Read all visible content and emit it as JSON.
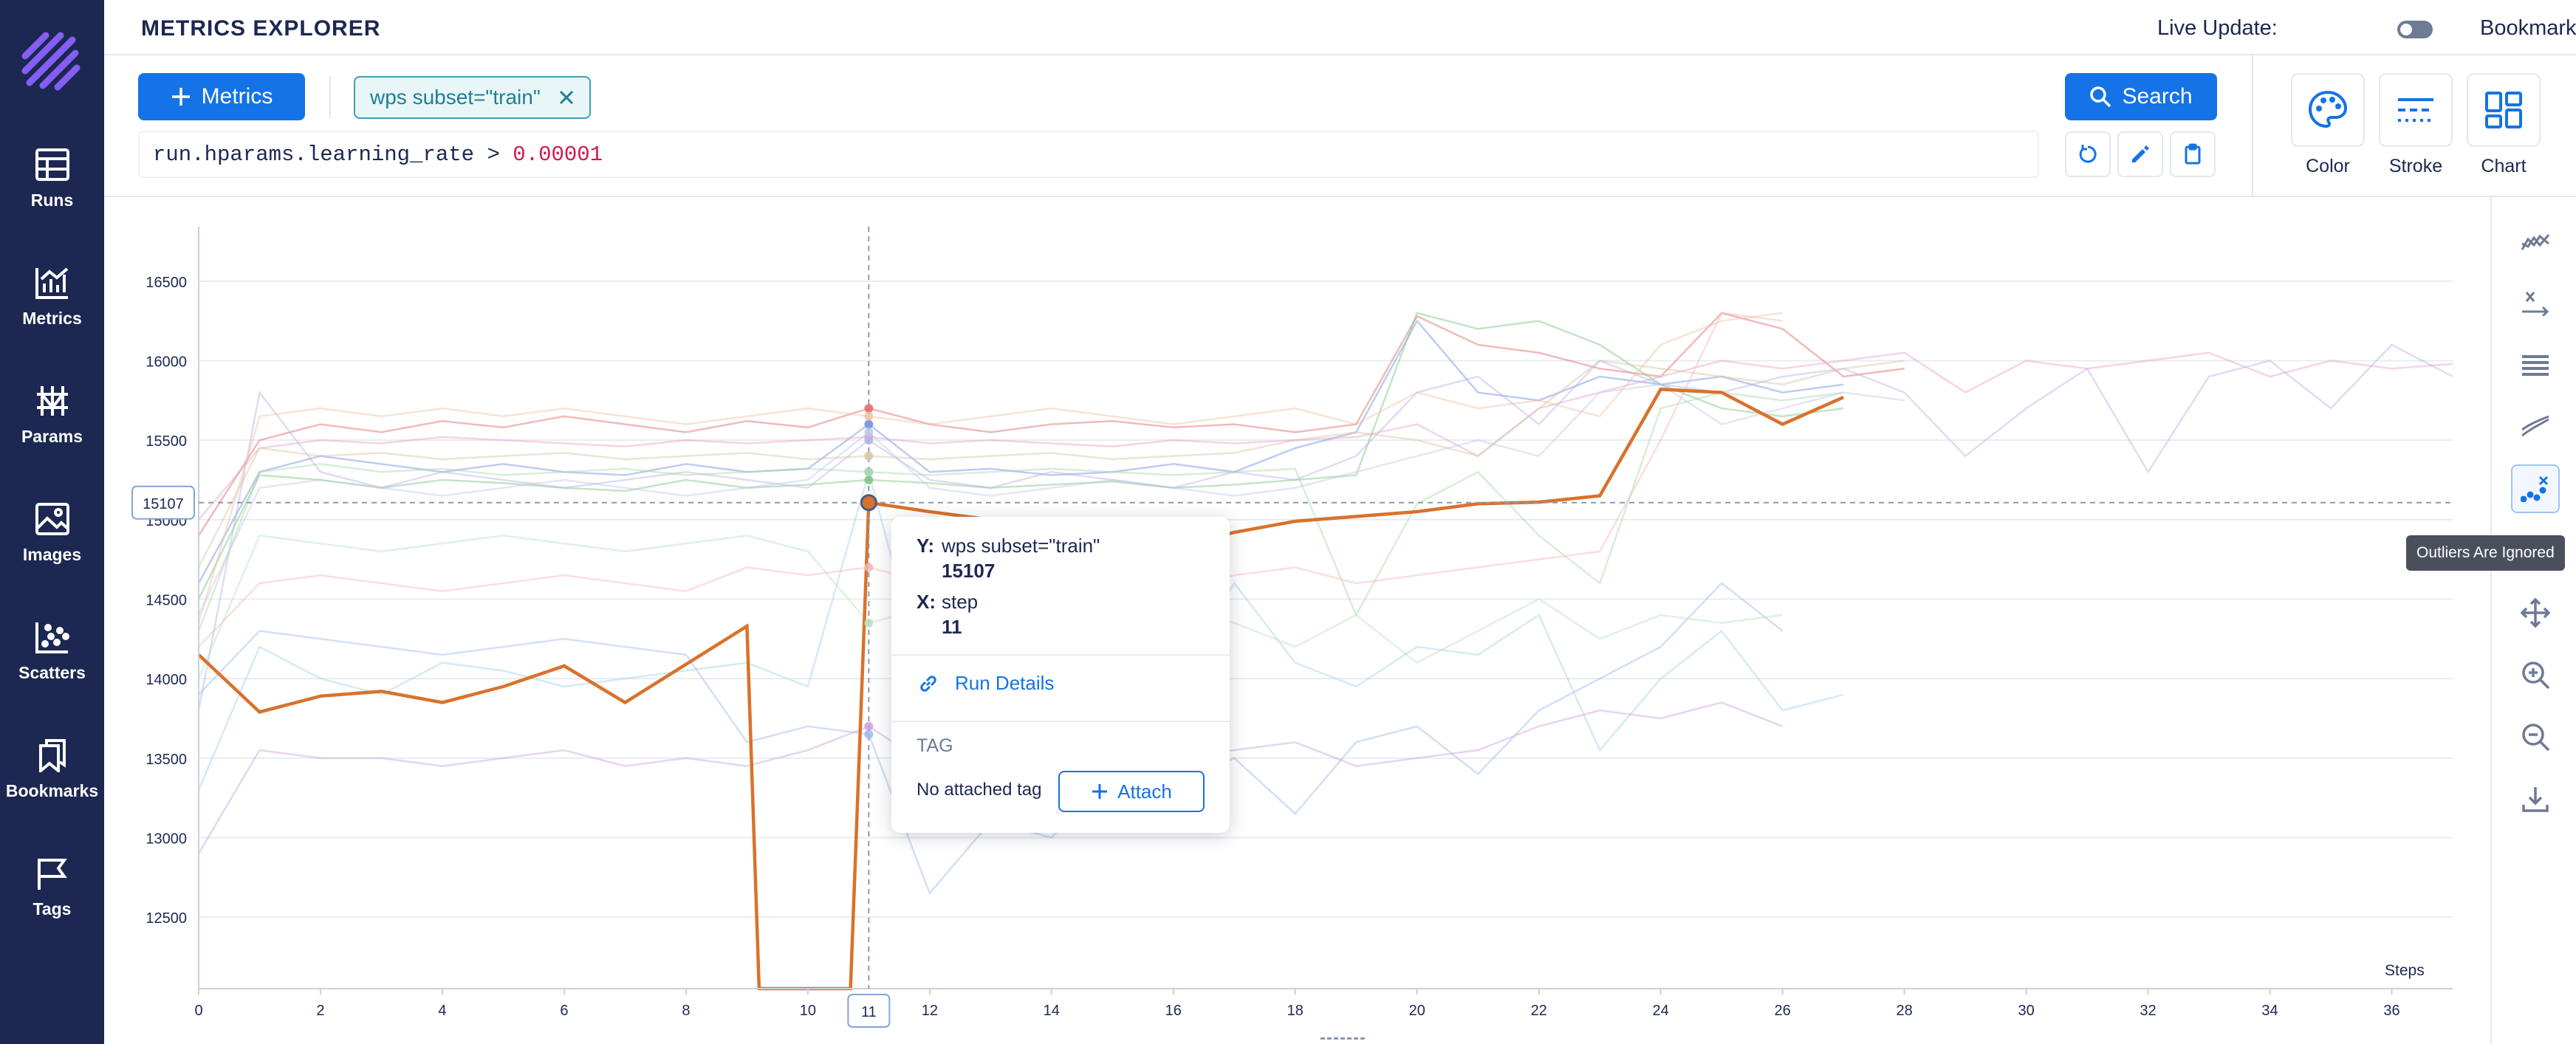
{
  "header": {
    "title": "METRICS EXPLORER",
    "live_update_label": "Live Update:",
    "bookmark_label": "Bookmark"
  },
  "sidebar": {
    "items": [
      {
        "label": "Runs",
        "icon": "table-icon"
      },
      {
        "label": "Metrics",
        "icon": "chart-icon"
      },
      {
        "label": "Params",
        "icon": "params-icon"
      },
      {
        "label": "Images",
        "icon": "image-icon"
      },
      {
        "label": "Scatters",
        "icon": "scatter-icon"
      },
      {
        "label": "Bookmarks",
        "icon": "bookmarks-icon"
      },
      {
        "label": "Tags",
        "icon": "flag-icon"
      }
    ]
  },
  "query": {
    "metrics_button": "Metrics",
    "chip_label": "wps subset=\"train\"",
    "expression_prefix": "run.hparams.learning_rate >",
    "expression_value": "0.00001",
    "search_button": "Search"
  },
  "controls": {
    "color": "Color",
    "stroke": "Stroke",
    "chart": "Chart"
  },
  "tooltip": {
    "y_key": "Y:",
    "y_metric": "wps  subset=\"train\"",
    "y_value": "15107",
    "x_key": "X:",
    "x_metric": "step",
    "x_value": "11",
    "run_details": "Run Details",
    "tag_title": "TAG",
    "no_tag": "No attached tag",
    "attach": "Attach"
  },
  "outliers_tooltip": "Outliers Are Ignored",
  "chart_data": {
    "type": "line",
    "xlabel": "Steps",
    "x_ticks": [
      0,
      2,
      4,
      6,
      8,
      10,
      12,
      14,
      16,
      18,
      20,
      22,
      24,
      26,
      28,
      30,
      32,
      34,
      36
    ],
    "y_ticks": [
      12500,
      13000,
      13500,
      14000,
      14500,
      15000,
      15500,
      16000,
      16500
    ],
    "xlim": [
      0,
      37
    ],
    "ylim": [
      12050,
      16750
    ],
    "grid": "horizontal",
    "cursor": {
      "x": 11,
      "y": 15107,
      "x_label": "11",
      "y_label": "15107"
    },
    "highlighted": {
      "color": "#d9722b",
      "x": [
        0,
        1,
        2,
        3,
        4,
        5,
        6,
        7,
        9,
        9.2,
        10.7,
        11,
        12,
        13,
        14,
        15,
        16,
        17,
        18,
        19,
        20,
        21,
        22,
        23,
        24,
        25,
        26,
        27
      ],
      "y": [
        14150,
        13790,
        13890,
        13920,
        13850,
        13950,
        14080,
        13850,
        14330,
        12050,
        12050,
        15107,
        15050,
        15000,
        14900,
        14950,
        14830,
        14920,
        14990,
        15020,
        15050,
        15100,
        15110,
        15150,
        15820,
        15800,
        15600,
        15770
      ]
    },
    "series": [
      {
        "color": "#e06666",
        "x": [
          0,
          1,
          2,
          3,
          4,
          5,
          6,
          7,
          8,
          9,
          10,
          11,
          12,
          13,
          14,
          15,
          16,
          17,
          18,
          19,
          20,
          21,
          22,
          23,
          24,
          25,
          26,
          27,
          28
        ],
        "y": [
          14900,
          15500,
          15600,
          15550,
          15620,
          15580,
          15650,
          15600,
          15550,
          15620,
          15580,
          15700,
          15600,
          15550,
          15600,
          15620,
          15580,
          15600,
          15550,
          15600,
          16280,
          16100,
          16050,
          15950,
          15900,
          16300,
          16200,
          15900,
          15950
        ]
      },
      {
        "color": "#6d8fe0",
        "x": [
          0,
          1,
          2,
          3,
          4,
          5,
          6,
          7,
          8,
          9,
          10,
          11,
          12,
          13,
          14,
          15,
          16,
          17,
          18,
          19,
          20,
          21,
          22,
          23,
          24,
          25,
          26,
          27
        ],
        "y": [
          14600,
          15300,
          15400,
          15350,
          15300,
          15350,
          15300,
          15280,
          15350,
          15300,
          15320,
          15600,
          15300,
          15320,
          15280,
          15300,
          15350,
          15300,
          15450,
          15550,
          16250,
          15800,
          15750,
          15900,
          15850,
          15900,
          15800,
          15850
        ]
      },
      {
        "color": "#7bc47f",
        "x": [
          0,
          1,
          2,
          3,
          4,
          5,
          6,
          7,
          8,
          9,
          10,
          11,
          12,
          13,
          14,
          15,
          16,
          17,
          18,
          19,
          20,
          21,
          22,
          23,
          24,
          25,
          26,
          27
        ],
        "y": [
          14500,
          15280,
          15250,
          15200,
          15250,
          15230,
          15200,
          15180,
          15250,
          15200,
          15220,
          15250,
          15230,
          15200,
          15220,
          15240,
          15200,
          15220,
          15250,
          15280,
          16300,
          16200,
          16250,
          16100,
          15850,
          15700,
          15650,
          15700
        ]
      },
      {
        "color": "#e8a0c8",
        "x": [
          0,
          1,
          2,
          3,
          4,
          5,
          6,
          7,
          8,
          9,
          10,
          11,
          12,
          13,
          14,
          15,
          16,
          17,
          18,
          19,
          20,
          21,
          22,
          23,
          24,
          25,
          26,
          27,
          28,
          29,
          30,
          31,
          32,
          33,
          34,
          35,
          36,
          37
        ],
        "y": [
          15000,
          15450,
          15500,
          15480,
          15520,
          15500,
          15480,
          15460,
          15500,
          15480,
          15500,
          15520,
          15480,
          15500,
          15480,
          15460,
          15500,
          15480,
          15500,
          15520,
          15600,
          15400,
          15700,
          15800,
          15900,
          16000,
          15950,
          16000,
          16050,
          15800,
          16000,
          15950,
          16000,
          16050,
          15900,
          16000,
          15950,
          15980
        ]
      },
      {
        "color": "#b3b3e6",
        "x": [
          0,
          1,
          2,
          3,
          4,
          5,
          6,
          7,
          8,
          9,
          10,
          11,
          12,
          13,
          14,
          15,
          16,
          17,
          18,
          19,
          20,
          21,
          22,
          23,
          24,
          25,
          26,
          27,
          28,
          29,
          30,
          31,
          32,
          33,
          34,
          35,
          36,
          37
        ],
        "y": [
          13800,
          15800,
          15300,
          15200,
          15300,
          15250,
          15200,
          15250,
          15300,
          15250,
          15200,
          15500,
          15250,
          15200,
          15300,
          15250,
          15200,
          15300,
          15250,
          15400,
          15800,
          15900,
          15600,
          16000,
          15850,
          15800,
          15900,
          15950,
          15800,
          15400,
          15700,
          15950,
          15300,
          15900,
          16000,
          15700,
          16100,
          15900
        ]
      },
      {
        "color": "#9fd3e6",
        "x": [
          0,
          1,
          2,
          3,
          4,
          5,
          6,
          7,
          8,
          9,
          10,
          11,
          12,
          13,
          14,
          15,
          16,
          17,
          18,
          19,
          20,
          21,
          22,
          23,
          24,
          25,
          26,
          27
        ],
        "y": [
          13300,
          14200,
          14000,
          13900,
          14100,
          14050,
          13950,
          14000,
          14050,
          14100,
          13950,
          15300,
          13850,
          14050,
          14300,
          13950,
          14000,
          14600,
          14100,
          13950,
          14200,
          14150,
          14400,
          13550,
          14000,
          14300,
          13800,
          13900
        ]
      },
      {
        "color": "#c9a0e0",
        "x": [
          0,
          1,
          2,
          3,
          4,
          5,
          6,
          7,
          8,
          9,
          10,
          11,
          12,
          13,
          14,
          15,
          16,
          17,
          18,
          19,
          20,
          21,
          22,
          23,
          24,
          25,
          26
        ],
        "y": [
          12900,
          13550,
          13500,
          13500,
          13450,
          13500,
          13550,
          13450,
          13500,
          13450,
          13550,
          13700,
          13450,
          13500,
          13550,
          13450,
          13500,
          13550,
          13600,
          13450,
          13500,
          13550,
          13700,
          13800,
          13750,
          13850,
          13700
        ]
      },
      {
        "color": "#a8d8a8",
        "x": [
          0,
          1,
          2,
          3,
          4,
          5,
          6,
          7,
          8,
          9,
          10,
          11,
          12,
          13,
          14,
          15,
          16,
          17,
          18,
          19,
          20,
          21,
          22,
          23,
          24,
          25,
          26,
          27
        ],
        "y": [
          14300,
          15300,
          15350,
          15300,
          15320,
          15280,
          15300,
          15320,
          15280,
          15300,
          15320,
          15300,
          15280,
          15300,
          15320,
          15300,
          15280,
          15300,
          15320,
          14400,
          15100,
          15300,
          14900,
          14600,
          15700,
          15800,
          15750,
          15800
        ]
      },
      {
        "color": "#f4b6b6",
        "x": [
          0,
          1,
          2,
          3,
          4,
          5,
          6,
          7,
          8,
          9,
          10,
          11,
          12,
          13,
          14,
          15,
          16,
          17,
          18,
          19,
          20,
          21,
          22,
          23,
          24,
          25,
          26
        ],
        "y": [
          14200,
          14600,
          14650,
          14600,
          14550,
          14600,
          14650,
          14600,
          14550,
          14700,
          14650,
          14700,
          14600,
          14550,
          14650,
          14600,
          14550,
          14650,
          14700,
          14600,
          14650,
          14700,
          14750,
          14800,
          15500,
          16300,
          16250
        ]
      },
      {
        "color": "#9bb8ea",
        "x": [
          0,
          1,
          2,
          3,
          4,
          5,
          6,
          7,
          8,
          9,
          10,
          11,
          12,
          13,
          14,
          15,
          16,
          17,
          18,
          19,
          20,
          21,
          22,
          23,
          24,
          25,
          26
        ],
        "y": [
          13900,
          14300,
          14250,
          14200,
          14150,
          14200,
          14250,
          14200,
          14150,
          13600,
          13700,
          13650,
          12650,
          13100,
          13000,
          13400,
          13300,
          13500,
          13150,
          13600,
          13700,
          13400,
          13800,
          14000,
          14200,
          14600,
          14300
        ]
      },
      {
        "color": "#d8c4a0",
        "x": [
          0,
          1,
          2,
          3,
          4,
          5,
          6,
          7,
          8,
          9,
          10,
          11,
          12,
          13,
          14,
          15,
          16,
          17,
          18,
          19,
          20,
          21,
          22,
          23,
          24,
          25,
          26,
          27,
          28
        ],
        "y": [
          14700,
          15450,
          15400,
          15420,
          15380,
          15400,
          15420,
          15380,
          15400,
          15420,
          15380,
          15400,
          15380,
          15400,
          15420,
          15380,
          15400,
          15420,
          15500,
          15550,
          15500,
          15400,
          15700,
          16000,
          15950,
          15900,
          15850,
          15950,
          16000
        ]
      },
      {
        "color": "#b8e0c0",
        "x": [
          0,
          1,
          2,
          3,
          4,
          5,
          6,
          7,
          8,
          9,
          10,
          11,
          12,
          13,
          14,
          15,
          16,
          17,
          18,
          19,
          20,
          21,
          22,
          23,
          24,
          25,
          26
        ],
        "y": [
          14000,
          14900,
          14850,
          14800,
          14850,
          14900,
          14850,
          14800,
          14850,
          14900,
          14800,
          14350,
          14450,
          14500,
          14400,
          14300,
          14450,
          14350,
          14200,
          14400,
          14100,
          14300,
          14500,
          14250,
          14400,
          14350,
          14400
        ]
      },
      {
        "color": "#c0c8e8",
        "x": [
          0,
          1,
          2,
          3,
          4,
          5,
          6,
          7,
          8,
          9,
          10,
          11,
          12,
          13,
          14,
          15,
          16,
          17,
          18,
          19,
          20,
          21,
          22,
          23,
          24,
          25,
          26,
          27,
          28
        ],
        "y": [
          14400,
          15200,
          15250,
          15200,
          15150,
          15200,
          15250,
          15200,
          15150,
          15200,
          15250,
          15550,
          15200,
          15150,
          15200,
          15250,
          15200,
          15150,
          15200,
          15300,
          15400,
          15500,
          15400,
          15800,
          15850,
          15600,
          15700,
          15800,
          15750
        ]
      },
      {
        "color": "#f0c0a0",
        "x": [
          0,
          1,
          2,
          3,
          4,
          5,
          6,
          7,
          8,
          9,
          10,
          11,
          12,
          13,
          14,
          15,
          16,
          17,
          18,
          19,
          20,
          21,
          22,
          23,
          24,
          25,
          26
        ],
        "y": [
          14350,
          15650,
          15700,
          15650,
          15700,
          15650,
          15700,
          15650,
          15600,
          15650,
          15700,
          15650,
          15600,
          15650,
          15700,
          15650,
          15600,
          15650,
          15700,
          15600,
          15800,
          15700,
          15750,
          15650,
          16100,
          16250,
          16300
        ]
      }
    ]
  }
}
